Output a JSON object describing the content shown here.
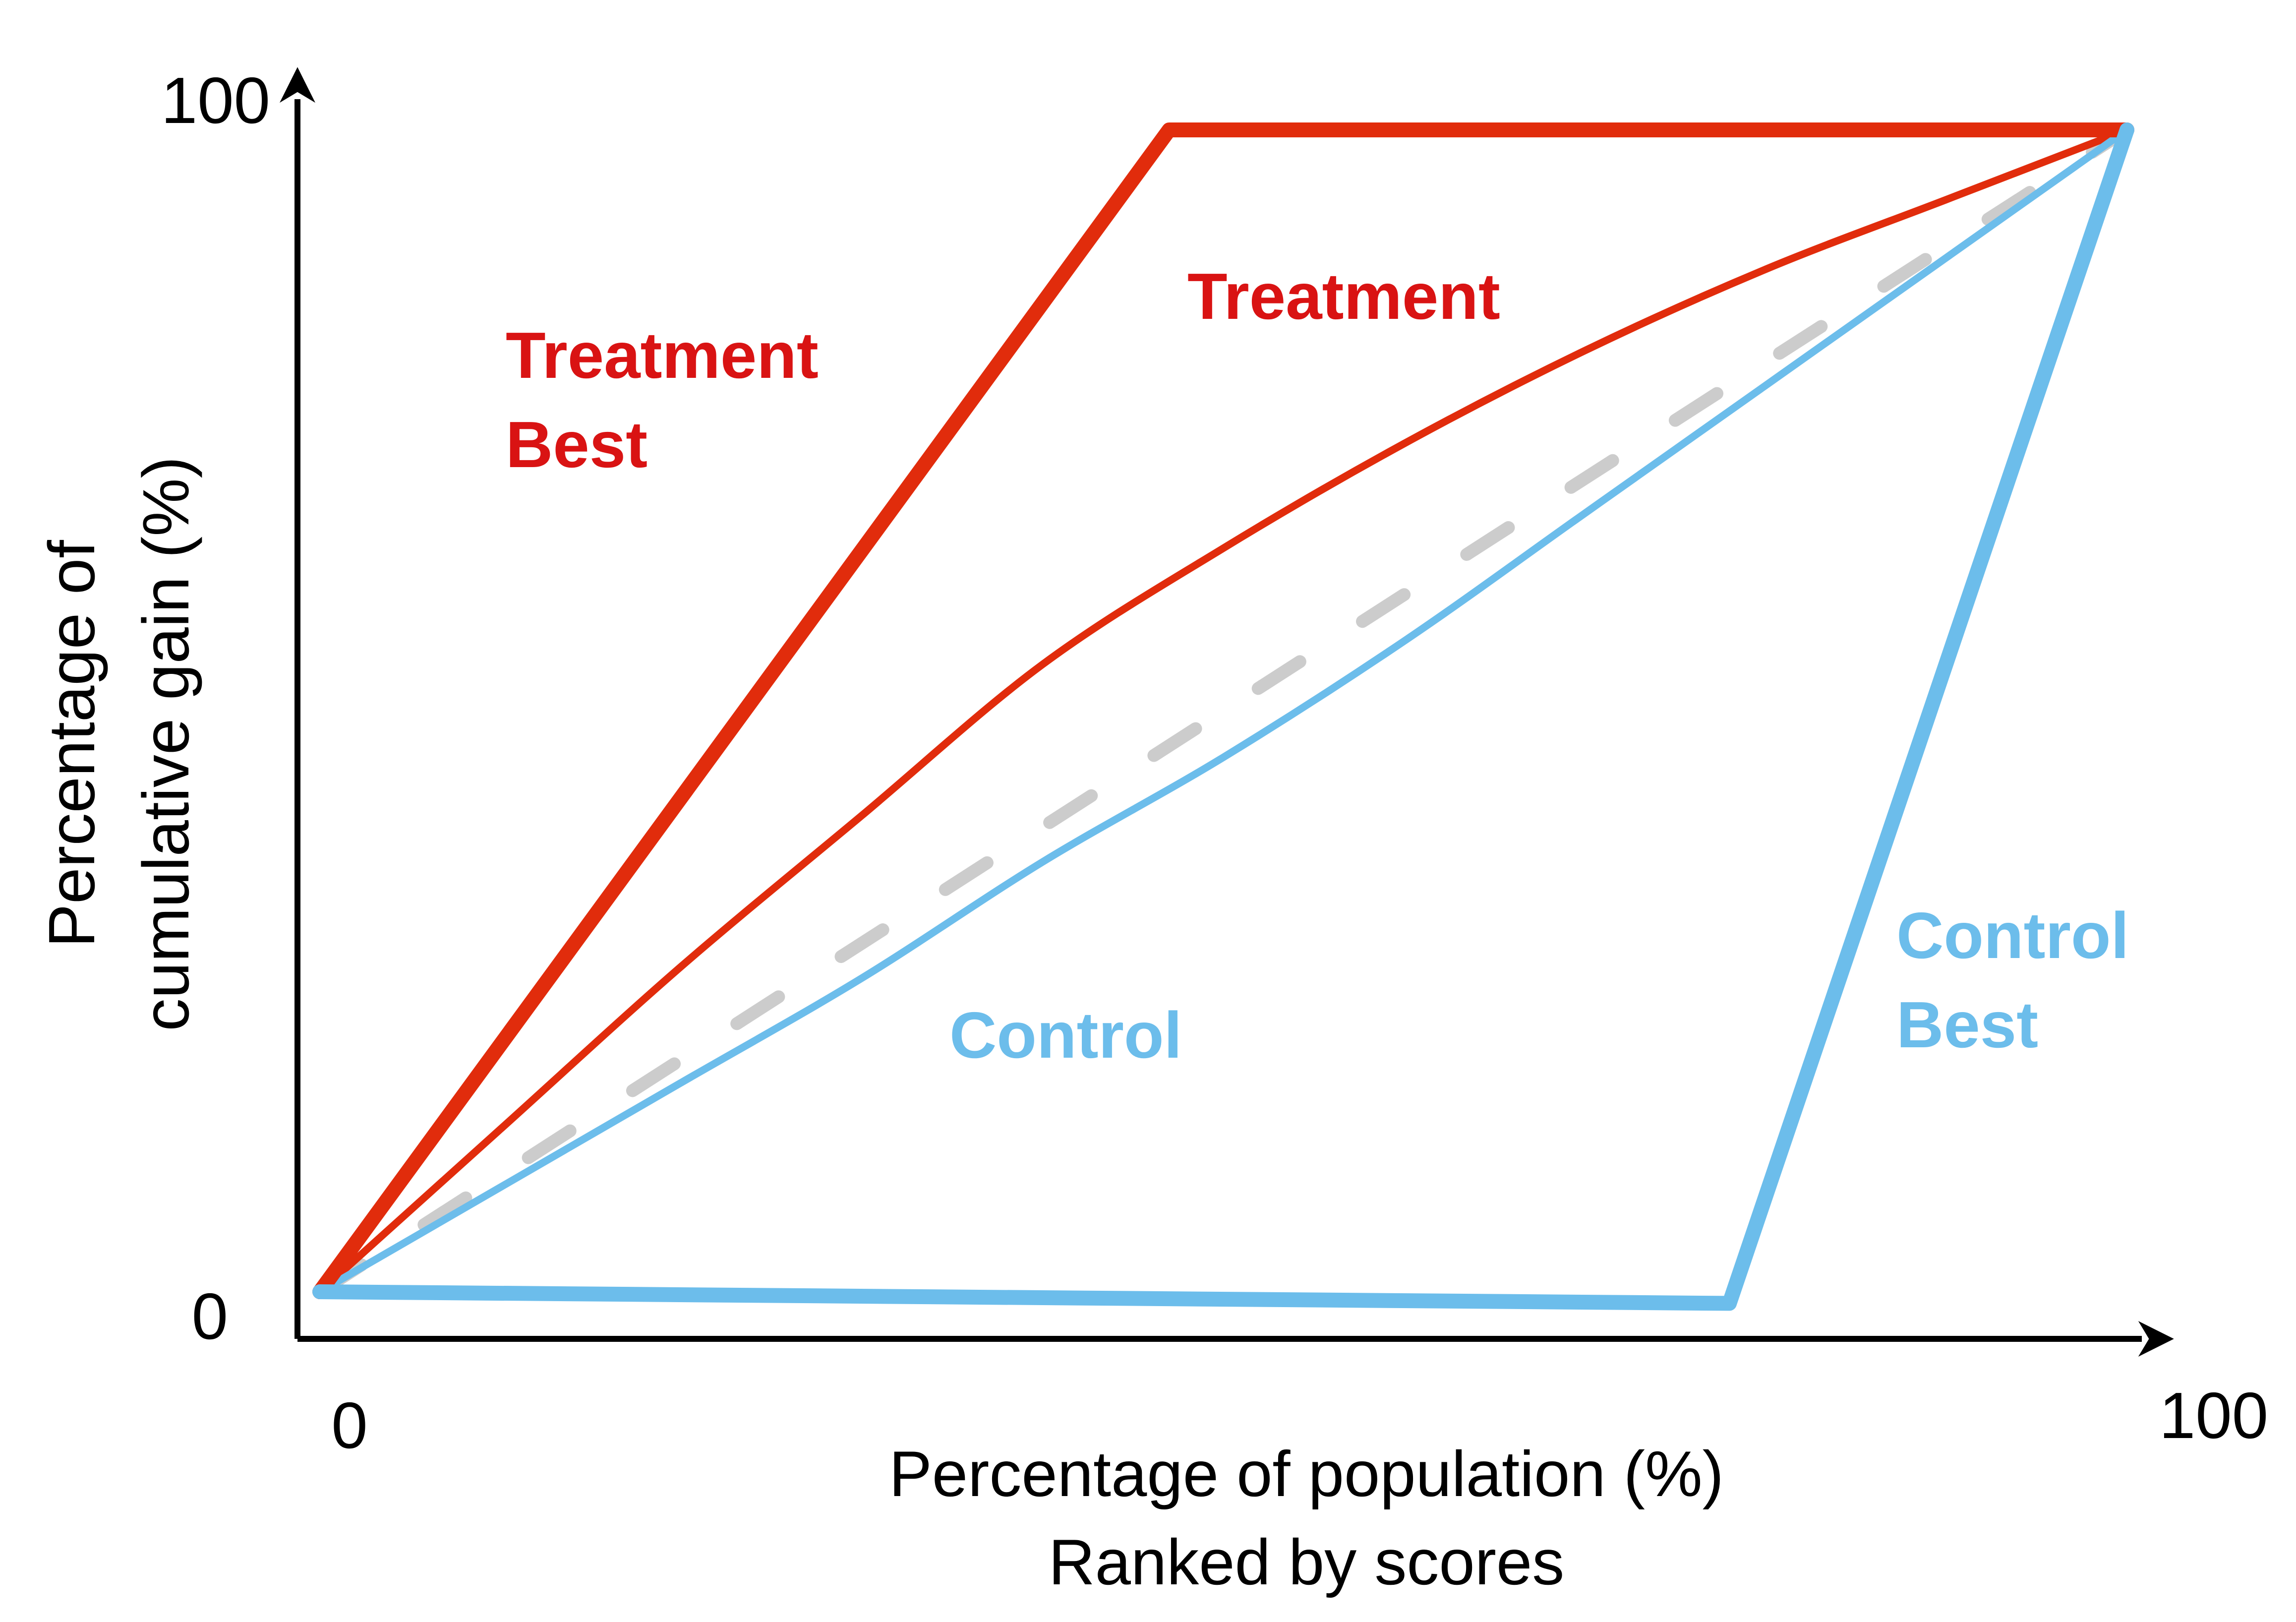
{
  "chart_data": {
    "type": "line",
    "xlabel": "Percentage of population (%)",
    "xlabel_line2": "Ranked by scores",
    "ylabel_line1": "Percentage of",
    "ylabel_line2": "cumulative gain (%)",
    "xlim": [
      0,
      100
    ],
    "ylim": [
      0,
      100
    ],
    "x_ticks": [
      "0",
      "100"
    ],
    "y_ticks": [
      "0",
      "100"
    ],
    "colors": {
      "treatment": "#e12c0c",
      "treatment_label": "#d91313",
      "control": "#6cbdeb",
      "random": "#cccccc",
      "axis": "#000000"
    },
    "series": [
      {
        "name": "Treatment Best",
        "label_lines": [
          "Treatment",
          "Best"
        ],
        "color_key": "treatment",
        "label_color_key": "treatment_label",
        "style": "thick",
        "points": [
          [
            0,
            0
          ],
          [
            47,
            100
          ],
          [
            100,
            100
          ]
        ]
      },
      {
        "name": "Treatment",
        "label_lines": [
          "Treatment"
        ],
        "color_key": "treatment",
        "label_color_key": "treatment_label",
        "style": "thin",
        "points": [
          [
            0,
            0
          ],
          [
            10,
            14
          ],
          [
            20,
            28
          ],
          [
            30,
            41
          ],
          [
            40,
            54
          ],
          [
            50,
            64
          ],
          [
            60,
            73
          ],
          [
            70,
            81
          ],
          [
            80,
            88
          ],
          [
            90,
            94
          ],
          [
            100,
            100
          ]
        ]
      },
      {
        "name": "random",
        "color_key": "random",
        "style": "dashed",
        "points": [
          [
            0,
            0
          ],
          [
            100,
            100
          ]
        ]
      },
      {
        "name": "Control",
        "label_lines": [
          "Control"
        ],
        "color_key": "control",
        "label_color_key": "control",
        "style": "thin",
        "points": [
          [
            0,
            0
          ],
          [
            10,
            9
          ],
          [
            20,
            18
          ],
          [
            30,
            27
          ],
          [
            40,
            37
          ],
          [
            50,
            46
          ],
          [
            60,
            56
          ],
          [
            70,
            67
          ],
          [
            80,
            78
          ],
          [
            90,
            89
          ],
          [
            100,
            100
          ]
        ]
      },
      {
        "name": "Control Best",
        "label_lines": [
          "Control",
          "Best"
        ],
        "color_key": "control",
        "label_color_key": "control",
        "style": "thick",
        "points": [
          [
            0,
            0
          ],
          [
            78,
            -1
          ],
          [
            100,
            100
          ]
        ]
      }
    ]
  }
}
